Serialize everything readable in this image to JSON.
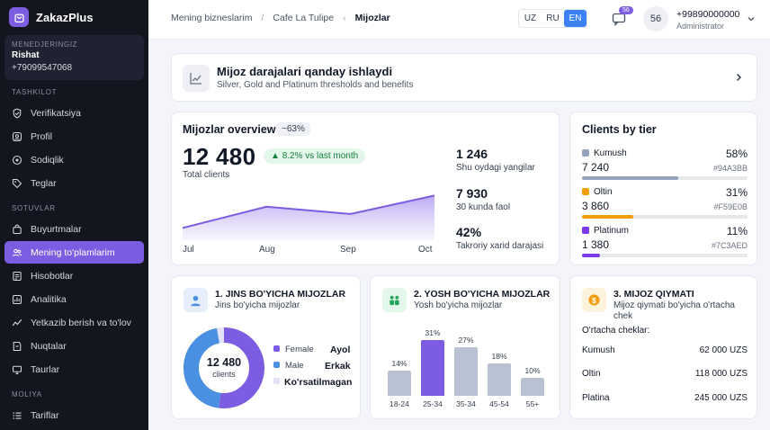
{
  "brand": {
    "name": "ZakazPlus"
  },
  "manager": {
    "caption": "MENEDJERINGIZ",
    "name": "Rishat",
    "phone": "+79099547068"
  },
  "sidebar": {
    "sections": [
      {
        "title": "TASHKILOT",
        "items": [
          {
            "label": "Verifikatsiya",
            "icon": "shield-check-icon"
          },
          {
            "label": "Profil",
            "icon": "user-circle-icon"
          },
          {
            "label": "Sodiqlik",
            "icon": "loyalty-icon"
          },
          {
            "label": "Teglar",
            "icon": "tag-icon"
          }
        ]
      },
      {
        "title": "SOTUVLAR",
        "items": [
          {
            "label": "Buyurtmalar",
            "icon": "shopping-bag-icon"
          },
          {
            "label": "Mening to'plamlarim",
            "icon": "users-icon",
            "active": true
          },
          {
            "label": "Hisobotlar",
            "icon": "report-icon"
          },
          {
            "label": "Analitika",
            "icon": "analytics-icon"
          },
          {
            "label": "Yetkazib berish va to'lov",
            "icon": "delivery-icon"
          },
          {
            "label": "Nuqtalar",
            "icon": "location-icon"
          },
          {
            "label": "Taurlar",
            "icon": "monitor-icon"
          }
        ]
      },
      {
        "title": "MOLIYA",
        "items": [
          {
            "label": "Tariflar",
            "icon": "list-icon"
          }
        ]
      }
    ]
  },
  "header": {
    "breadcrumb": [
      "Mening bizneslarim",
      "Cafe La Tulipe",
      "Mijozlar"
    ],
    "languages": [
      "UZ",
      "RU",
      "EN"
    ],
    "active_language": "EN",
    "notifications": "56",
    "avatar": "56",
    "user": {
      "phone": "+99890000000",
      "role": "Administrator"
    }
  },
  "info": {
    "title": "Mijoz darajalari qanday ishlaydi",
    "subtitle": "Silver, Gold and Platinum thresholds and benefits"
  },
  "overview": {
    "title": "Mijozlar overview",
    "pill": "~63%",
    "total": "12 480",
    "growth": "8.2% vs last month",
    "total_label": "Total clients",
    "stats": [
      {
        "value": "1 246",
        "label": "Shu oydagi yangilar"
      },
      {
        "value": "7 930",
        "label": "30 kunda faol"
      },
      {
        "value": "42%",
        "label": "Takroriy xarid darajasi"
      }
    ],
    "trend": {
      "x": [
        "Jul",
        "Aug",
        "Sep",
        "Oct"
      ],
      "y": [
        0.22,
        0.6,
        0.47,
        0.8
      ]
    }
  },
  "tiers": {
    "title": "Clients by tier",
    "items": [
      {
        "name": "Kumush",
        "count": "7 240",
        "pct": "58%",
        "hex": "#94A3BB",
        "fill": 0.58,
        "color": "#94A3BB"
      },
      {
        "name": "Oltin",
        "count": "3 860",
        "pct": "31%",
        "hex": "#F59E0B",
        "fill": 0.31,
        "color": "#F59E0B"
      },
      {
        "name": "Platinum",
        "count": "1 380",
        "pct": "11%",
        "hex": "#7C3AED",
        "fill": 0.11,
        "color": "#7C3AED"
      }
    ]
  },
  "gender": {
    "title": "1. JINS BO'YICHA MIJOZLAR",
    "subtitle": "Jins bo'yicha mijozlar",
    "center_value": "12 480",
    "center_label": "clients",
    "legend": [
      {
        "name": "Female",
        "label": "Ayol",
        "color": "#7C5CE0",
        "share": 0.52
      },
      {
        "name": "Male",
        "label": "Erkak",
        "color": "#4A90E2",
        "share": 0.45
      },
      {
        "name": "",
        "label": "Ko'rsatilmagan",
        "color": "#E4E1F7",
        "share": 0.03
      }
    ]
  },
  "age": {
    "title": "2. YOSH BO'YICHA MIJOZLAR",
    "subtitle": "Yosh bo'yicha mijozlar",
    "chart_data": {
      "type": "bar",
      "categories": [
        "18-24",
        "25-34",
        "35-34",
        "45-54",
        "55+"
      ],
      "values": [
        14,
        31,
        27,
        18,
        10
      ],
      "labels": [
        "14%",
        "31%",
        "27%",
        "18%",
        "10%"
      ],
      "highlight_index": 1,
      "ylim": [
        0,
        31
      ]
    }
  },
  "value": {
    "title": "3. MIJOZ QIYMATI",
    "subtitle": "Mijoz qiymati bo'yicha o'rtacha chek",
    "avg_label": "O'rtacha cheklar:",
    "rows": [
      {
        "name": "Kumush",
        "value": "62 000 UZS"
      },
      {
        "name": "Oltin",
        "value": "118 000 UZS"
      },
      {
        "name": "Platina",
        "value": "245 000 UZS"
      }
    ]
  }
}
